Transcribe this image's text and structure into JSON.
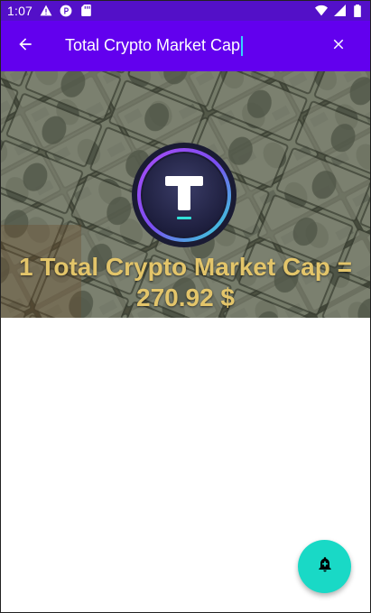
{
  "status_bar": {
    "time": "1:07",
    "left_icons": [
      "warning-icon",
      "data-saver-icon",
      "sd-card-icon"
    ],
    "right_icons": [
      "wifi-icon",
      "signal-icon",
      "battery-icon"
    ]
  },
  "app_bar": {
    "back_icon": "arrow-back-icon",
    "search_value": "Total Crypto Market Cap",
    "clear_icon": "close-icon",
    "background_color": "#6200ee"
  },
  "hero": {
    "title_line1": "1 Total Crypto Market Cap =",
    "title_line2": "270.92 $",
    "title_color": "#e3c56a",
    "logo_letter": "T"
  },
  "fab": {
    "icon": "notification-add-icon",
    "color": "#19d9c6"
  }
}
